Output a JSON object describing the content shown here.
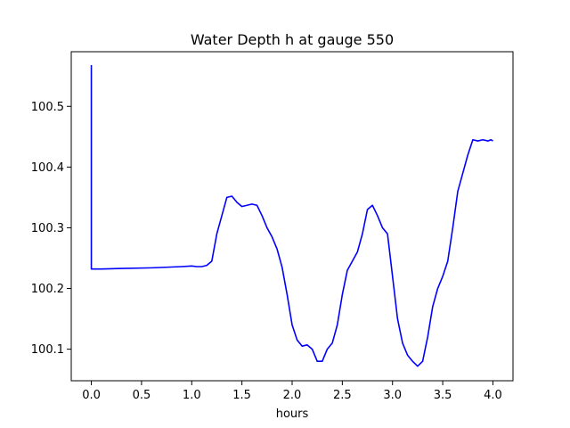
{
  "chart_data": {
    "type": "line",
    "title": "Water Depth h at gauge 550",
    "xlabel": "hours",
    "ylabel": "",
    "xlim": [
      -0.2,
      4.2
    ],
    "ylim": [
      100.048,
      100.59
    ],
    "x_ticks": [
      0.0,
      0.5,
      1.0,
      1.5,
      2.0,
      2.5,
      3.0,
      3.5,
      4.0
    ],
    "x_tick_labels": [
      "0.0",
      "0.5",
      "1.0",
      "1.5",
      "2.0",
      "2.5",
      "3.0",
      "3.5",
      "4.0"
    ],
    "y_ticks": [
      100.1,
      100.2,
      100.3,
      100.4,
      100.5
    ],
    "y_tick_labels": [
      "100.1",
      "100.2",
      "100.3",
      "100.4",
      "100.5"
    ],
    "grid": false,
    "legend": "none",
    "series": [
      {
        "color": "#0000ff",
        "x": [
          0.0,
          0.0,
          0.01,
          0.1,
          0.3,
          0.6,
          0.9,
          1.0,
          1.05,
          1.1,
          1.15,
          1.2,
          1.25,
          1.3,
          1.35,
          1.4,
          1.45,
          1.5,
          1.55,
          1.6,
          1.65,
          1.7,
          1.75,
          1.8,
          1.85,
          1.9,
          1.95,
          2.0,
          2.05,
          2.1,
          2.15,
          2.2,
          2.25,
          2.3,
          2.35,
          2.4,
          2.45,
          2.5,
          2.55,
          2.6,
          2.65,
          2.7,
          2.75,
          2.8,
          2.85,
          2.9,
          2.95,
          3.0,
          3.05,
          3.1,
          3.15,
          3.2,
          3.25,
          3.3,
          3.35,
          3.4,
          3.45,
          3.5,
          3.55,
          3.6,
          3.65,
          3.7,
          3.75,
          3.8,
          3.85,
          3.9,
          3.95,
          3.98,
          4.0
        ],
        "y": [
          100.568,
          100.232,
          100.232,
          100.232,
          100.233,
          100.234,
          100.236,
          100.237,
          100.236,
          100.236,
          100.238,
          100.245,
          100.29,
          100.32,
          100.35,
          100.352,
          100.342,
          100.335,
          100.337,
          100.339,
          100.337,
          100.32,
          100.3,
          100.285,
          100.265,
          100.235,
          100.19,
          100.14,
          100.115,
          100.105,
          100.107,
          100.1,
          100.08,
          100.08,
          100.1,
          100.11,
          100.14,
          100.19,
          100.23,
          100.245,
          100.26,
          100.29,
          100.33,
          100.337,
          100.32,
          100.3,
          100.29,
          100.22,
          100.15,
          100.11,
          100.09,
          100.08,
          100.072,
          100.08,
          100.12,
          100.17,
          100.2,
          100.22,
          100.245,
          100.3,
          100.36,
          100.39,
          100.42,
          100.445,
          100.443,
          100.445,
          100.443,
          100.445,
          100.443
        ]
      }
    ]
  }
}
